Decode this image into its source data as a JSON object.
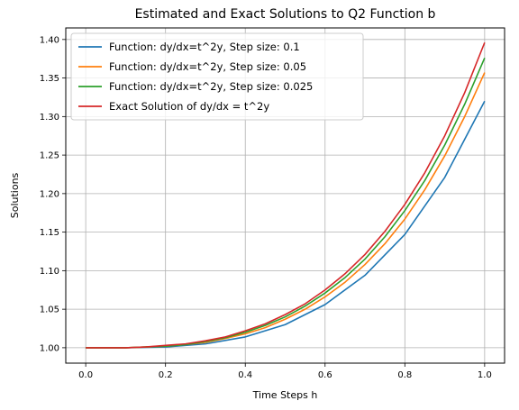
{
  "chart_data": {
    "type": "line",
    "title": "Estimated and Exact Solutions to Q2 Function b",
    "xlabel": "Time Steps h",
    "ylabel": "Solutions",
    "xlim": [
      -0.05,
      1.05
    ],
    "ylim": [
      0.98,
      1.415
    ],
    "xticks": [
      0.0,
      0.2,
      0.4,
      0.6,
      0.8,
      1.0
    ],
    "xtick_labels": [
      "0.0",
      "0.2",
      "0.4",
      "0.6",
      "0.8",
      "1.0"
    ],
    "yticks": [
      1.0,
      1.05,
      1.1,
      1.15,
      1.2,
      1.25,
      1.3,
      1.35,
      1.4
    ],
    "ytick_labels": [
      "1.00",
      "1.05",
      "1.10",
      "1.15",
      "1.20",
      "1.25",
      "1.30",
      "1.35",
      "1.40"
    ],
    "grid": true,
    "legend_position": "top-left",
    "series": [
      {
        "name": "Function: dy/dx=t^2y, Step size: 0.1",
        "color": "#1f77b4",
        "x": [
          0.0,
          0.1,
          0.2,
          0.3,
          0.4,
          0.5,
          0.6,
          0.7,
          0.8,
          0.9,
          1.0
        ],
        "y": [
          1.0,
          1.0,
          1.001,
          1.005,
          1.014,
          1.03,
          1.056,
          1.094,
          1.147,
          1.221,
          1.32
        ]
      },
      {
        "name": "Function: dy/dx=t^2y, Step size: 0.05",
        "color": "#ff7f0e",
        "x": [
          0.0,
          0.05,
          0.1,
          0.15,
          0.2,
          0.25,
          0.3,
          0.35,
          0.4,
          0.45,
          0.5,
          0.55,
          0.6,
          0.65,
          0.7,
          0.75,
          0.8,
          0.85,
          0.9,
          0.95,
          1.0
        ],
        "y": [
          1.0,
          1.0,
          1.0,
          1.001,
          1.002,
          1.004,
          1.007,
          1.012,
          1.018,
          1.026,
          1.037,
          1.05,
          1.066,
          1.085,
          1.108,
          1.135,
          1.167,
          1.205,
          1.249,
          1.3,
          1.357
        ]
      },
      {
        "name": "Function: dy/dx=t^2y, Step size: 0.025",
        "color": "#2ca02c",
        "x": [
          0.0,
          0.05,
          0.1,
          0.15,
          0.2,
          0.25,
          0.3,
          0.35,
          0.4,
          0.45,
          0.5,
          0.55,
          0.6,
          0.65,
          0.7,
          0.75,
          0.8,
          0.85,
          0.9,
          0.95,
          1.0
        ],
        "y": [
          1.0,
          1.0,
          1.0,
          1.001,
          1.002,
          1.004,
          1.008,
          1.013,
          1.02,
          1.029,
          1.04,
          1.054,
          1.071,
          1.091,
          1.115,
          1.144,
          1.178,
          1.217,
          1.263,
          1.316,
          1.376
        ]
      },
      {
        "name": "Exact Solution of dy/dx = t^2y",
        "color": "#d62728",
        "x": [
          0.0,
          0.05,
          0.1,
          0.15,
          0.2,
          0.25,
          0.3,
          0.35,
          0.4,
          0.45,
          0.5,
          0.55,
          0.6,
          0.65,
          0.7,
          0.75,
          0.8,
          0.85,
          0.9,
          0.95,
          1.0
        ],
        "y": [
          1.0,
          1.0,
          1.0,
          1.001,
          1.003,
          1.005,
          1.009,
          1.014,
          1.022,
          1.031,
          1.043,
          1.057,
          1.075,
          1.096,
          1.121,
          1.151,
          1.186,
          1.227,
          1.275,
          1.331,
          1.396
        ]
      }
    ]
  }
}
